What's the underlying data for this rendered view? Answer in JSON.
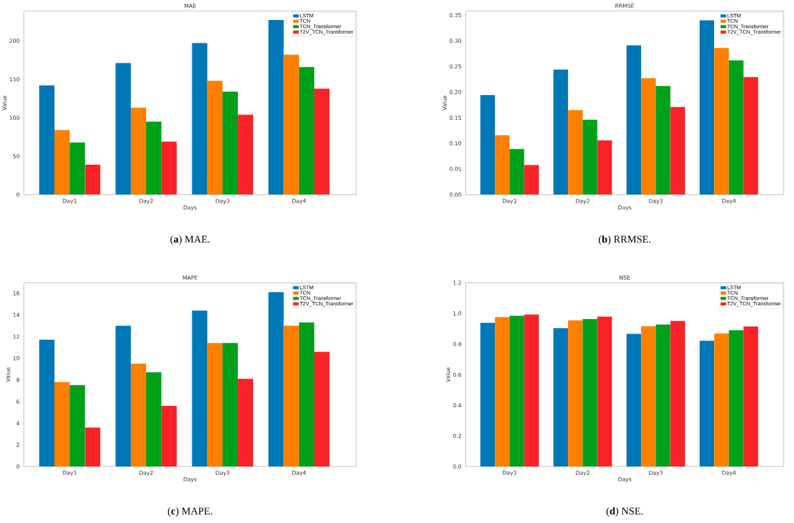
{
  "chart_data": [
    {
      "type": "bar",
      "title": "MAE",
      "xlabel": "Days",
      "ylabel": "Value",
      "categories": [
        "Day1",
        "Day2",
        "Day3",
        "Day4"
      ],
      "series": [
        {
          "name": "LSTM",
          "color": "#0077b6",
          "values": [
            142,
            171,
            197,
            227
          ]
        },
        {
          "name": "TCN",
          "color": "#ff7f00",
          "values": [
            84,
            113,
            148,
            182
          ]
        },
        {
          "name": "TCN_Transformer",
          "color": "#00a01a",
          "values": [
            68,
            95,
            134,
            166
          ]
        },
        {
          "name": "T2V_TCN_Transformer",
          "color": "#f82326",
          "values": [
            39,
            69,
            104,
            138
          ]
        }
      ],
      "ylim": [
        0,
        238.7
      ],
      "yticks": [
        0,
        50,
        100,
        150,
        200
      ],
      "legend": "top right",
      "annotations": [
        "(**a**) MAE."
      ]
    },
    {
      "type": "bar",
      "title": "RRMSE",
      "xlabel": "Days",
      "ylabel": "Value",
      "categories": [
        "Day1",
        "Day2",
        "Day3",
        "Day4"
      ],
      "series": [
        {
          "name": "LSTM",
          "color": "#0077b6",
          "values": [
            0.194,
            0.244,
            0.291,
            0.34
          ]
        },
        {
          "name": "TCN",
          "color": "#ff7f00",
          "values": [
            0.116,
            0.165,
            0.227,
            0.286
          ]
        },
        {
          "name": "TCN_Transformer",
          "color": "#00a01a",
          "values": [
            0.089,
            0.146,
            0.212,
            0.262
          ]
        },
        {
          "name": "T2V_TCN_Transformer",
          "color": "#f82326",
          "values": [
            0.058,
            0.106,
            0.171,
            0.229
          ]
        }
      ],
      "ylim": [
        0,
        0.358
      ],
      "yticks": [
        {
          "value": 0,
          "label": "0.00"
        },
        {
          "value": 0.05,
          "label": "0.05"
        },
        {
          "value": 0.1,
          "label": "0.10"
        },
        {
          "value": 0.15,
          "label": "0.15"
        },
        {
          "value": 0.2,
          "label": "0.20"
        },
        {
          "value": 0.25,
          "label": "0.25"
        },
        {
          "value": 0.3,
          "label": "0.30"
        },
        {
          "value": 0.35,
          "label": "0.35"
        }
      ],
      "legend": "top right",
      "annotations": [
        "(**b**) RRMSE."
      ]
    },
    {
      "type": "bar",
      "title": "MAPE",
      "xlabel": "Days",
      "ylabel": "Value",
      "categories": [
        "Day1",
        "Day2",
        "Day3",
        "Day4"
      ],
      "series": [
        {
          "name": "LSTM",
          "color": "#0077b6",
          "values": [
            11.7,
            13.0,
            14.4,
            16.1
          ]
        },
        {
          "name": "TCN",
          "color": "#ff7f00",
          "values": [
            7.8,
            9.5,
            11.4,
            13.0
          ]
        },
        {
          "name": "TCN_Transformer",
          "color": "#00a01a",
          "values": [
            7.5,
            8.7,
            11.4,
            13.3
          ]
        },
        {
          "name": "T2V_TCN_Transformer",
          "color": "#f82326",
          "values": [
            3.6,
            5.6,
            8.1,
            10.6
          ]
        }
      ],
      "ylim": [
        0,
        16.96
      ],
      "yticks": [
        0,
        2,
        4,
        6,
        8,
        10,
        12,
        14,
        16
      ],
      "legend": "top right",
      "annotations": [
        "(**c**) MAPE."
      ]
    },
    {
      "type": "bar",
      "title": "NSE",
      "xlabel": "Days",
      "ylabel": "Value",
      "categories": [
        "Day1",
        "Day2",
        "Day3",
        "Day4"
      ],
      "series": [
        {
          "name": "LSTM",
          "color": "#0077b6",
          "values": [
            0.939,
            0.904,
            0.867,
            0.821
          ]
        },
        {
          "name": "TCN",
          "color": "#ff7f00",
          "values": [
            0.976,
            0.954,
            0.916,
            0.869
          ]
        },
        {
          "name": "TCN_Transformer",
          "color": "#00a01a",
          "values": [
            0.985,
            0.963,
            0.927,
            0.89
          ]
        },
        {
          "name": "T2V_TCN_Transformer",
          "color": "#f82326",
          "values": [
            0.993,
            0.979,
            0.951,
            0.915
          ]
        }
      ],
      "ylim": [
        0,
        1.2
      ],
      "yticks": [
        {
          "value": 0,
          "label": "0.0"
        },
        {
          "value": 0.2,
          "label": "0.2"
        },
        {
          "value": 0.4,
          "label": "0.4"
        },
        {
          "value": 0.6,
          "label": "0.6"
        },
        {
          "value": 0.8,
          "label": "0.8"
        },
        {
          "value": 1.0,
          "label": "1.0"
        },
        {
          "value": 1.2,
          "label": "1.2"
        }
      ],
      "legend": "top right",
      "annotations": [
        "(**d**) NSE."
      ]
    }
  ]
}
